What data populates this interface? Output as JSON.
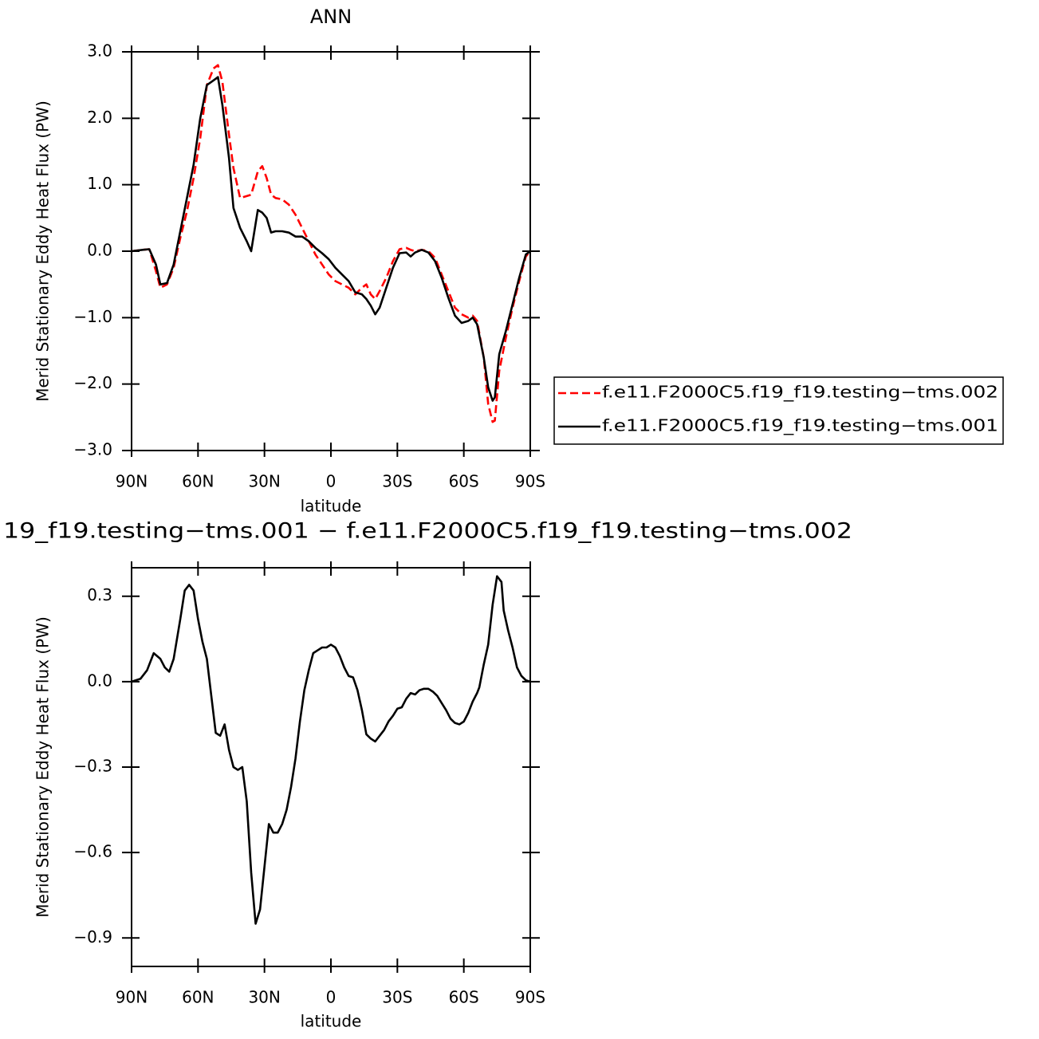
{
  "chart_data": [
    {
      "type": "line",
      "title": "ANN",
      "xlabel": "latitude",
      "ylabel": "Merid Stationary Eddy Heat Flux (PW)",
      "x": [
        90,
        85,
        82,
        79,
        77,
        74,
        71,
        68,
        65,
        62,
        59,
        56,
        53,
        51,
        49,
        46,
        44,
        41,
        38,
        36,
        33,
        31,
        29,
        27,
        25,
        22,
        19,
        16,
        13,
        10,
        7,
        4,
        1,
        -2,
        -5,
        -8,
        -11,
        -14,
        -16,
        -18,
        -20,
        -22,
        -25,
        -28,
        -31,
        -34,
        -36,
        -38,
        -41,
        -44,
        -47,
        -50,
        -53,
        -56,
        -59,
        -62,
        -64,
        -66,
        -69,
        -71,
        -73,
        -74,
        -76,
        -79,
        -82,
        -85,
        -88,
        -90
      ],
      "xlim": [
        90,
        -90
      ],
      "xticks": [
        {
          "value": 90,
          "label": "90N"
        },
        {
          "value": 60,
          "label": "60N"
        },
        {
          "value": 30,
          "label": "30N"
        },
        0,
        {
          "value": -30,
          "label": "30S"
        },
        {
          "value": -60,
          "label": "60S"
        },
        {
          "value": -90,
          "label": "90S"
        }
      ],
      "ylim": [
        -3,
        3
      ],
      "yticks": [
        {
          "value": 3,
          "label": "3.0"
        },
        {
          "value": 2,
          "label": "2.0"
        },
        {
          "value": 1,
          "label": "1.0"
        },
        {
          "value": 0,
          "label": "0.0"
        },
        {
          "value": -1,
          "label": "−1.0"
        },
        {
          "value": -2,
          "label": "−2.0"
        },
        {
          "value": -3,
          "label": "−3.0"
        }
      ],
      "legend": "right",
      "series": [
        {
          "name": "f.e11.F2000C5.f19_f19.testing−tms.002",
          "color": "#ff0000",
          "dashed": true,
          "values": [
            0,
            0.02,
            0.03,
            -0.3,
            -0.55,
            -0.5,
            -0.25,
            0.2,
            0.6,
            1.1,
            1.7,
            2.5,
            2.75,
            2.8,
            2.55,
            1.75,
            1.25,
            0.8,
            0.83,
            0.85,
            1.2,
            1.28,
            1.1,
            0.85,
            0.8,
            0.78,
            0.7,
            0.55,
            0.35,
            0.15,
            -0.05,
            -0.2,
            -0.35,
            -0.45,
            -0.5,
            -0.55,
            -0.65,
            -0.55,
            -0.5,
            -0.65,
            -0.72,
            -0.6,
            -0.4,
            -0.15,
            0.03,
            0.05,
            0.02,
            0.0,
            0.02,
            0.0,
            -0.1,
            -0.35,
            -0.6,
            -0.85,
            -0.95,
            -1.0,
            -0.97,
            -1.05,
            -1.6,
            -2.3,
            -2.57,
            -2.55,
            -1.8,
            -1.3,
            -0.85,
            -0.45,
            -0.08,
            0
          ]
        },
        {
          "name": "f.e11.F2000C5.f19_f19.testing−tms.001",
          "color": "#000000",
          "dashed": false,
          "values": [
            0,
            0.02,
            0.03,
            -0.2,
            -0.5,
            -0.48,
            -0.2,
            0.3,
            0.8,
            1.3,
            2.0,
            2.5,
            2.57,
            2.62,
            2.2,
            1.4,
            0.65,
            0.35,
            0.15,
            0.0,
            0.62,
            0.58,
            0.5,
            0.28,
            0.3,
            0.3,
            0.28,
            0.22,
            0.22,
            0.15,
            0.05,
            -0.03,
            -0.12,
            -0.25,
            -0.35,
            -0.45,
            -0.62,
            -0.65,
            -0.72,
            -0.82,
            -0.95,
            -0.85,
            -0.55,
            -0.25,
            -0.03,
            -0.02,
            -0.08,
            -0.02,
            0.02,
            -0.02,
            -0.15,
            -0.4,
            -0.7,
            -0.97,
            -1.08,
            -1.05,
            -1.0,
            -1.1,
            -1.6,
            -2.05,
            -2.25,
            -2.2,
            -1.55,
            -1.2,
            -0.8,
            -0.4,
            -0.05,
            0
          ]
        }
      ]
    },
    {
      "type": "line",
      "title": "19_f19.testing−tms.001 − f.e11.F2000C5.f19_f19.testing−tms.002",
      "xlabel": "latitude",
      "ylabel": "Merid Stationary Eddy Heat Flux (PW)",
      "x": [
        90,
        86,
        83,
        80,
        77,
        75,
        73,
        71,
        68,
        66,
        64,
        62,
        60,
        58,
        56,
        54,
        52,
        50,
        48,
        46,
        44,
        42,
        40,
        38,
        36,
        34,
        32,
        30,
        28,
        26,
        24,
        22,
        20,
        18,
        16,
        14,
        12,
        10,
        8,
        6,
        4,
        2,
        0,
        -2,
        -4,
        -6,
        -8,
        -10,
        -12,
        -14,
        -16,
        -18,
        -20,
        -22,
        -24,
        -26,
        -28,
        -30,
        -32,
        -34,
        -36,
        -38,
        -40,
        -42,
        -44,
        -46,
        -48,
        -50,
        -52,
        -54,
        -56,
        -58,
        -60,
        -62,
        -64,
        -66,
        -67,
        -69,
        -71,
        -73,
        -75,
        -77,
        -78,
        -80,
        -82,
        -84,
        -86,
        -88,
        -90
      ],
      "xlim": [
        90,
        -90
      ],
      "xticks": [
        {
          "value": 90,
          "label": "90N"
        },
        {
          "value": 60,
          "label": "60N"
        },
        {
          "value": 30,
          "label": "30N"
        },
        0,
        {
          "value": -30,
          "label": "30S"
        },
        {
          "value": -60,
          "label": "60S"
        },
        {
          "value": -90,
          "label": "90S"
        }
      ],
      "ylim": [
        -1.0,
        0.4
      ],
      "yticks": [
        0.3,
        {
          "value": 0,
          "label": "0.0"
        },
        {
          "value": -0.3,
          "label": "−0.3"
        },
        {
          "value": -0.6,
          "label": "−0.6"
        },
        {
          "value": -0.9,
          "label": "−0.9"
        }
      ],
      "series": [
        {
          "color": "#000000",
          "dashed": false,
          "values": [
            0,
            0.01,
            0.04,
            0.1,
            0.08,
            0.05,
            0.035,
            0.08,
            0.22,
            0.32,
            0.34,
            0.32,
            0.22,
            0.14,
            0.08,
            -0.05,
            -0.18,
            -0.19,
            -0.15,
            -0.24,
            -0.3,
            -0.31,
            -0.3,
            -0.42,
            -0.67,
            -0.85,
            -0.8,
            -0.65,
            -0.5,
            -0.53,
            -0.53,
            -0.5,
            -0.45,
            -0.37,
            -0.27,
            -0.14,
            -0.03,
            0.04,
            0.1,
            0.11,
            0.12,
            0.12,
            0.13,
            0.12,
            0.09,
            0.05,
            0.02,
            0.015,
            -0.03,
            -0.1,
            -0.185,
            -0.2,
            -0.21,
            -0.19,
            -0.17,
            -0.14,
            -0.12,
            -0.095,
            -0.09,
            -0.06,
            -0.04,
            -0.045,
            -0.03,
            -0.025,
            -0.025,
            -0.035,
            -0.05,
            -0.075,
            -0.1,
            -0.13,
            -0.145,
            -0.15,
            -0.14,
            -0.11,
            -0.07,
            -0.04,
            -0.02,
            0.06,
            0.13,
            0.27,
            0.37,
            0.35,
            0.25,
            0.18,
            0.12,
            0.05,
            0.02,
            0.005,
            0
          ]
        }
      ]
    }
  ]
}
